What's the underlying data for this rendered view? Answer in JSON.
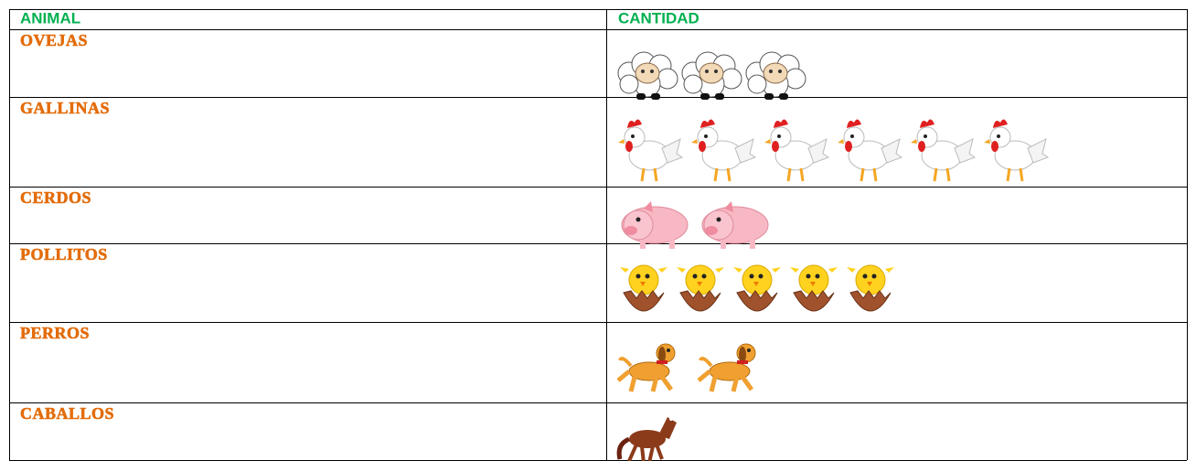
{
  "table": {
    "header": [
      "ANIMAL",
      "CANTIDAD"
    ],
    "rows": [
      {
        "animal": "OVEJAS",
        "count": 3
      },
      {
        "animal": "GALLINAS",
        "count": 6
      },
      {
        "animal": "CERDOS",
        "count": 2
      },
      {
        "animal": "POLLITOS",
        "count": 5
      },
      {
        "animal": "PERROS",
        "count": 2
      },
      {
        "animal": "CABALLOS",
        "count": 1
      }
    ]
  }
}
